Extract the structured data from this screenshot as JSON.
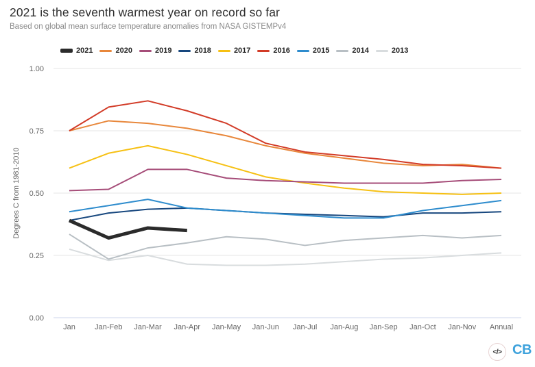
{
  "header": {
    "title": "2021 is the seventh warmest year on record so far",
    "subtitle": "Based on global mean surface temperature anomalies from NASA GISTEMPv4"
  },
  "footer": {
    "embed_icon": "code-icon",
    "embed_icon_glyph": "</>",
    "logo_text": "CB",
    "logo_color": "#3ea2dc"
  },
  "colors": {
    "grid": "#e6e6e6",
    "axis_line": "#ccd6eb",
    "tick_text": "#666666"
  },
  "chart_data": {
    "type": "line",
    "title": "2021 is the seventh warmest year on record so far",
    "subtitle": "Based on global mean surface temperature anomalies from NASA GISTEMPv4",
    "ylabel": "Degrees C from 1981-2010",
    "xlabel": "",
    "ylim": [
      0,
      1
    ],
    "ytick_values": [
      0,
      0.25,
      0.5,
      0.75,
      1
    ],
    "ytick_labels": [
      "0.00",
      "0.25",
      "0.50",
      "0.75",
      "1.00"
    ],
    "grid": "horizontal",
    "legend_position": "top",
    "categories": [
      "Jan",
      "Jan-Feb",
      "Jan-Mar",
      "Jan-Apr",
      "Jan-May",
      "Jan-Jun",
      "Jan-Jul",
      "Jan-Aug",
      "Jan-Sep",
      "Jan-Oct",
      "Jan-Nov",
      "Annual"
    ],
    "series": [
      {
        "name": "2021",
        "color": "#2b2b2b",
        "thick": true,
        "values": [
          0.39,
          0.32,
          0.36,
          0.35
        ]
      },
      {
        "name": "2020",
        "color": "#e8873b",
        "thick": false,
        "values": [
          0.75,
          0.79,
          0.78,
          0.76,
          0.73,
          0.69,
          0.66,
          0.64,
          0.62,
          0.61,
          0.615,
          0.6
        ]
      },
      {
        "name": "2019",
        "color": "#a64d79",
        "thick": false,
        "values": [
          0.51,
          0.515,
          0.595,
          0.595,
          0.56,
          0.55,
          0.545,
          0.54,
          0.54,
          0.54,
          0.55,
          0.555
        ]
      },
      {
        "name": "2018",
        "color": "#17477e",
        "thick": false,
        "values": [
          0.39,
          0.42,
          0.435,
          0.44,
          0.43,
          0.42,
          0.415,
          0.41,
          0.405,
          0.42,
          0.42,
          0.425
        ]
      },
      {
        "name": "2017",
        "color": "#f6c013",
        "thick": false,
        "values": [
          0.6,
          0.66,
          0.69,
          0.655,
          0.61,
          0.565,
          0.54,
          0.52,
          0.505,
          0.5,
          0.495,
          0.5
        ]
      },
      {
        "name": "2016",
        "color": "#d23b27",
        "thick": false,
        "values": [
          0.75,
          0.845,
          0.87,
          0.83,
          0.78,
          0.7,
          0.665,
          0.65,
          0.635,
          0.615,
          0.61,
          0.6
        ]
      },
      {
        "name": "2015",
        "color": "#2e8ccd",
        "thick": false,
        "values": [
          0.425,
          0.45,
          0.475,
          0.44,
          0.43,
          0.42,
          0.41,
          0.4,
          0.4,
          0.43,
          0.45,
          0.47
        ]
      },
      {
        "name": "2014",
        "color": "#b8bfc4",
        "thick": false,
        "values": [
          0.335,
          0.235,
          0.28,
          0.3,
          0.325,
          0.315,
          0.29,
          0.31,
          0.32,
          0.33,
          0.32,
          0.33
        ]
      },
      {
        "name": "2013",
        "color": "#d8dcde",
        "thick": false,
        "values": [
          0.275,
          0.23,
          0.25,
          0.215,
          0.21,
          0.21,
          0.215,
          0.225,
          0.235,
          0.24,
          0.25,
          0.26
        ]
      }
    ]
  }
}
